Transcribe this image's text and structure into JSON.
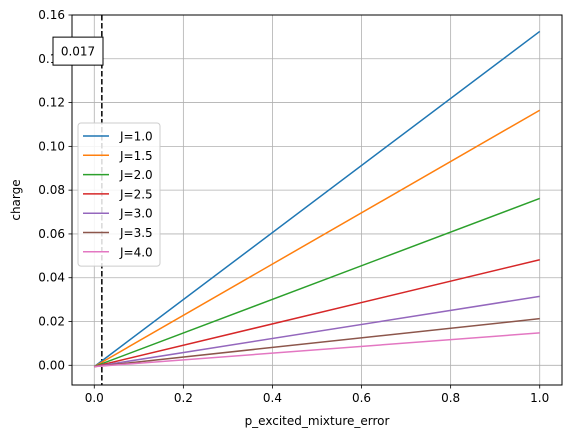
{
  "chart_data": {
    "type": "line",
    "title": "",
    "xlabel": "p_excited_mixture_error",
    "ylabel": "charge",
    "xlim": [
      -0.05,
      1.05
    ],
    "ylim": [
      -0.009,
      0.16
    ],
    "xticks": [
      0.0,
      0.2,
      0.4,
      0.6,
      0.8,
      1.0
    ],
    "xtick_labels": [
      "0.0",
      "0.2",
      "0.4",
      "0.6",
      "0.8",
      "1.0"
    ],
    "yticks": [
      0.0,
      0.02,
      0.04,
      0.06,
      0.08,
      0.1,
      0.12,
      0.14,
      0.16
    ],
    "ytick_labels": [
      "0.00",
      "0.02",
      "0.04",
      "0.06",
      "0.08",
      "0.10",
      "0.12",
      "0.14",
      "0.16"
    ],
    "grid": true,
    "legend_position": "center-left",
    "vline": {
      "x": 0.017,
      "label": "0.017",
      "style": "dashed",
      "color": "#000000"
    },
    "series": [
      {
        "name": "J=1.0",
        "color": "#1f77b4",
        "x": [
          0.0,
          1.0
        ],
        "y": [
          -0.0006,
          0.1525
        ]
      },
      {
        "name": "J=1.5",
        "color": "#ff7f0e",
        "x": [
          0.0,
          1.0
        ],
        "y": [
          -0.0006,
          0.1165
        ]
      },
      {
        "name": "J=2.0",
        "color": "#2ca02c",
        "x": [
          0.0,
          1.0
        ],
        "y": [
          -0.0006,
          0.0762
        ]
      },
      {
        "name": "J=2.5",
        "color": "#d62728",
        "x": [
          0.0,
          1.0
        ],
        "y": [
          -0.0006,
          0.0482
        ]
      },
      {
        "name": "J=3.0",
        "color": "#9467bd",
        "x": [
          0.0,
          1.0
        ],
        "y": [
          -0.0006,
          0.0315
        ]
      },
      {
        "name": "J=3.5",
        "color": "#8c564b",
        "x": [
          0.0,
          1.0
        ],
        "y": [
          -0.0006,
          0.0213
        ]
      },
      {
        "name": "J=4.0",
        "color": "#e377c2",
        "x": [
          0.0,
          1.0
        ],
        "y": [
          -0.0006,
          0.0148
        ]
      }
    ]
  }
}
